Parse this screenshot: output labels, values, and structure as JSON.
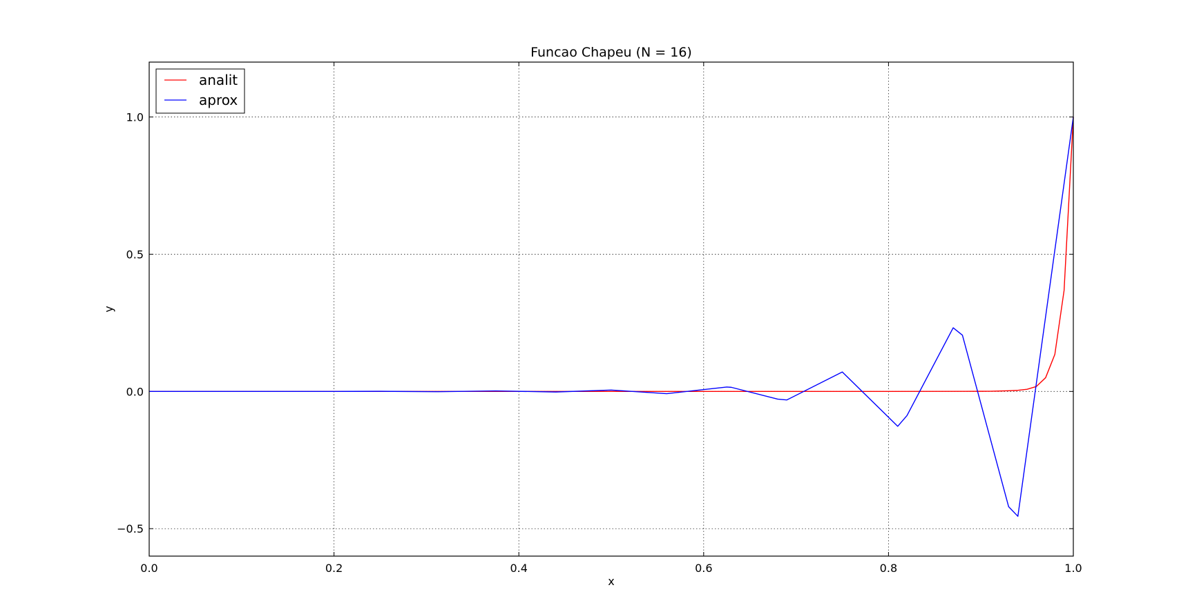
{
  "chart_data": {
    "type": "line",
    "title": "Funcao Chapeu (N = 16)",
    "xlabel": "x",
    "ylabel": "y",
    "xlim": [
      0.0,
      1.0
    ],
    "ylim": [
      -0.6,
      1.2
    ],
    "xticks": [
      0.0,
      0.2,
      0.4,
      0.6,
      0.8,
      1.0
    ],
    "xtick_labels": [
      "0.0",
      "0.2",
      "0.4",
      "0.6",
      "0.8",
      "1.0"
    ],
    "yticks": [
      -0.5,
      0.0,
      0.5,
      1.0
    ],
    "ytick_labels": [
      "−0.5",
      "0.0",
      "0.5",
      "1.0"
    ],
    "grid": true,
    "legend_position": "top-left",
    "series": [
      {
        "name": "analit",
        "color": "#ff0000",
        "x": [
          0.0,
          0.1,
          0.2,
          0.3,
          0.4,
          0.5,
          0.6,
          0.7,
          0.8,
          0.9,
          0.91,
          0.92,
          0.93,
          0.94,
          0.95,
          0.96,
          0.97,
          0.98,
          0.99,
          1.0
        ],
        "y": [
          0.0,
          0.0,
          0.0,
          0.0,
          0.0,
          0.0,
          0.0,
          0.0,
          0.0,
          0.0005,
          0.0008,
          0.0015,
          0.0025,
          0.004,
          0.008,
          0.018,
          0.05,
          0.135,
          0.368,
          1.0
        ]
      },
      {
        "name": "aprox",
        "color": "#0000ff",
        "x": [
          0.0,
          0.1,
          0.2,
          0.25,
          0.31,
          0.375,
          0.44,
          0.5,
          0.56,
          0.625,
          0.63,
          0.68,
          0.69,
          0.75,
          0.81,
          0.82,
          0.87,
          0.88,
          0.93,
          0.94,
          1.0
        ],
        "y": [
          0.0,
          0.0,
          0.0,
          0.0005,
          -0.001,
          0.002,
          -0.002,
          0.005,
          -0.008,
          0.016,
          0.015,
          -0.028,
          -0.031,
          0.071,
          -0.127,
          -0.088,
          0.232,
          0.205,
          -0.42,
          -0.455,
          1.0
        ]
      }
    ]
  }
}
